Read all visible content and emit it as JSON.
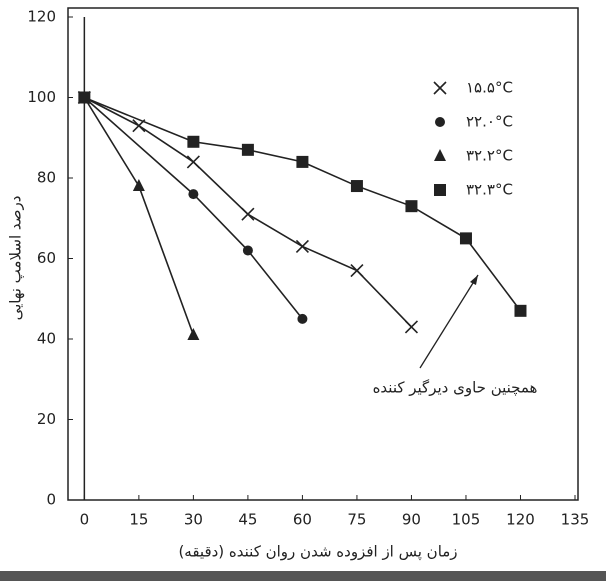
{
  "chart_data": {
    "type": "line",
    "xlabel": "زمان پس از افزوده شدن روان کننده (دقیقه)",
    "ylabel": "درصد اسلامپ نهایی",
    "annotation": "همچنین حاوی دیرگیر کننده",
    "xlim": [
      -4.5,
      135
    ],
    "xticks": [
      0,
      15,
      30,
      45,
      60,
      75,
      90,
      105,
      120,
      135
    ],
    "ylim": [
      0,
      120
    ],
    "yticks": [
      0,
      20,
      40,
      60,
      80,
      100,
      120
    ],
    "series": [
      {
        "name": "۱۵.۵°C",
        "color": "#222",
        "marker": "x",
        "x": [
          0,
          15,
          30,
          45,
          60,
          75,
          90
        ],
        "values": [
          100,
          93,
          84,
          71,
          63,
          57,
          43
        ]
      },
      {
        "name": "۲۲.۰°C",
        "color": "#222",
        "marker": "circle",
        "x": [
          0,
          30,
          45,
          60
        ],
        "values": [
          100,
          76,
          62,
          45
        ]
      },
      {
        "name": "۳۲.۲°C",
        "color": "#222",
        "marker": "triangle",
        "x": [
          0,
          15,
          30
        ],
        "values": [
          100,
          78,
          41
        ]
      },
      {
        "name": "۳۲.۳°C",
        "color": "#222",
        "marker": "square",
        "x": [
          0,
          30,
          45,
          60,
          75,
          90,
          105,
          120
        ],
        "values": [
          100,
          89,
          87,
          84,
          78,
          73,
          65,
          47
        ]
      }
    ]
  }
}
